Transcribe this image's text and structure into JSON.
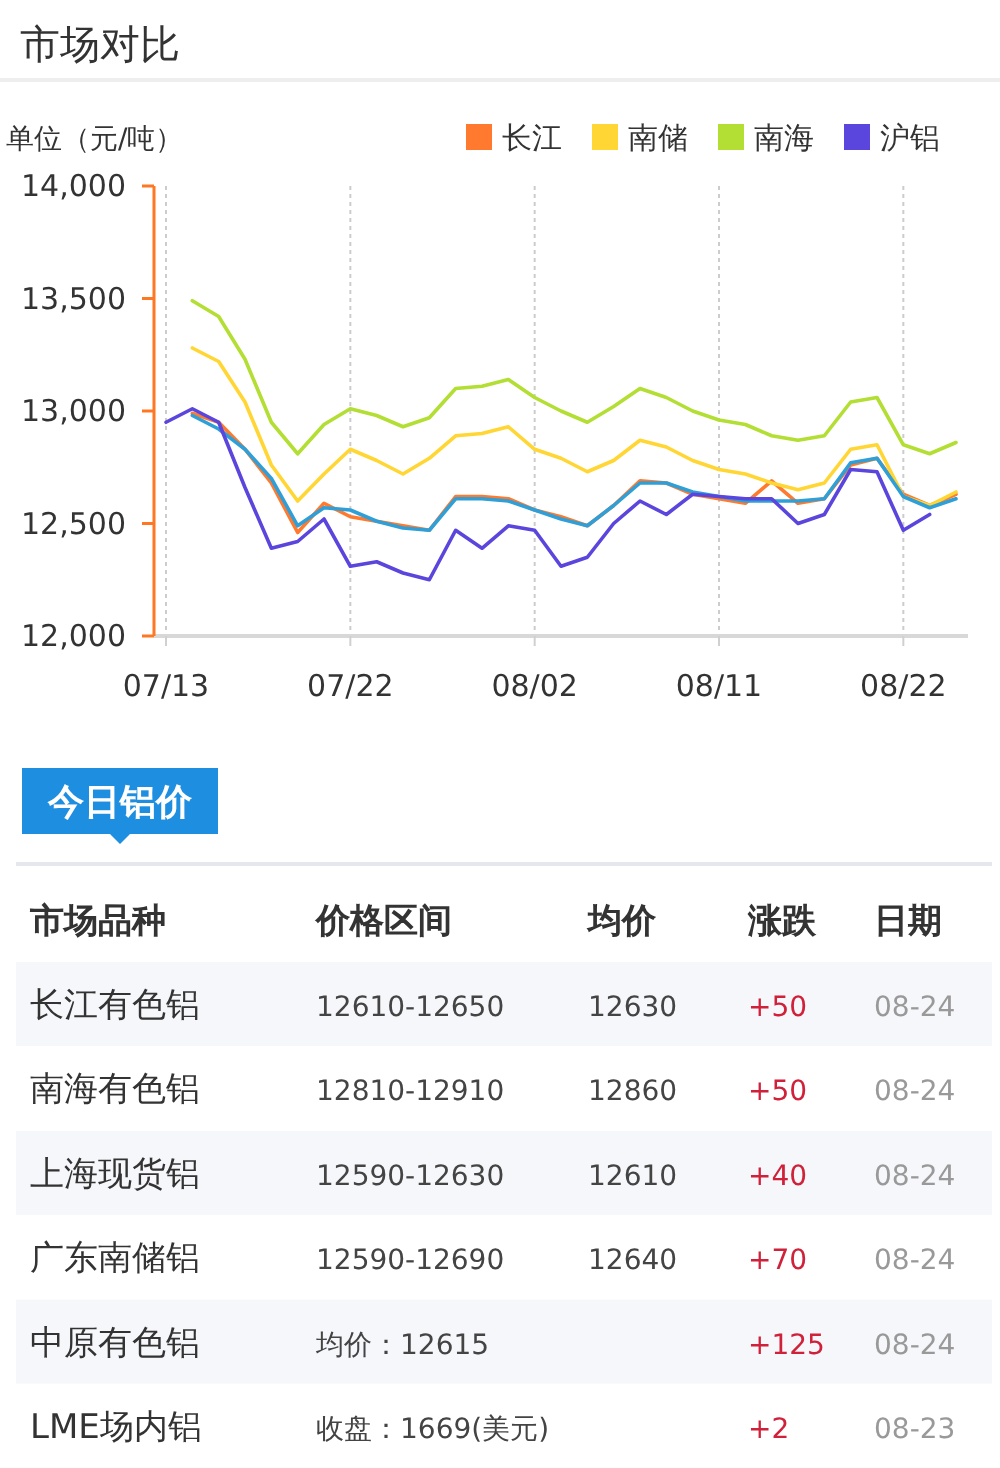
{
  "chart_data": [
    {
      "type": "line",
      "title": "市场对比",
      "ylabel": "单位（元/吨）",
      "categories": [
        "07/13",
        null,
        null,
        null,
        null,
        null,
        null,
        "07/22",
        null,
        null,
        null,
        null,
        null,
        null,
        "08/02",
        null,
        null,
        null,
        null,
        null,
        null,
        "08/11",
        null,
        null,
        null,
        null,
        null,
        null,
        "08/22",
        null,
        null
      ],
      "series": [
        {
          "name": "长江",
          "color": "#ff7a2e",
          "values": [
            null,
            12990,
            12950,
            12830,
            12680,
            12460,
            12590,
            12530,
            12510,
            12490,
            12470,
            12620,
            12620,
            12610,
            12560,
            12530,
            12490,
            12580,
            12690,
            12680,
            12630,
            12610,
            12590,
            12690,
            12590,
            12610,
            12760,
            12790,
            12630,
            12580,
            12630
          ]
        },
        {
          "name": "南储",
          "color": "#ffd633",
          "values": [
            null,
            13280,
            13220,
            13040,
            12760,
            12600,
            12720,
            12830,
            12780,
            12720,
            12790,
            12890,
            12900,
            12930,
            12830,
            12790,
            12730,
            12780,
            12870,
            12840,
            12780,
            12740,
            12720,
            12680,
            12650,
            12680,
            12830,
            12850,
            12620,
            12580,
            12640
          ]
        },
        {
          "name": "南海",
          "color": "#b3de33",
          "values": [
            null,
            13490,
            13420,
            13230,
            12950,
            12810,
            12940,
            13010,
            12980,
            12930,
            12970,
            13100,
            13110,
            13140,
            13060,
            13000,
            12950,
            13020,
            13100,
            13060,
            13000,
            12960,
            12940,
            12890,
            12870,
            12890,
            13040,
            13060,
            12850,
            12810,
            12860
          ]
        },
        {
          "color": "#2f9fd8",
          "values": [
            null,
            12980,
            12920,
            12830,
            12700,
            12490,
            12570,
            12560,
            12510,
            12480,
            12470,
            12610,
            12610,
            12600,
            12560,
            12520,
            12490,
            12580,
            12680,
            12680,
            12640,
            12620,
            12600,
            12600,
            12600,
            12610,
            12770,
            12790,
            12620,
            12570,
            12610
          ]
        },
        {
          "name": "沪铝",
          "color": "#5a45dd",
          "values": [
            12950,
            13010,
            12950,
            12660,
            12390,
            12420,
            12520,
            12310,
            12330,
            12280,
            12250,
            12470,
            12390,
            12490,
            12470,
            12310,
            12350,
            12500,
            12600,
            12540,
            12630,
            12620,
            12610,
            12610,
            12500,
            12540,
            12740,
            12730,
            12470,
            12540,
            null
          ]
        }
      ],
      "ylim": [
        12000,
        14000
      ],
      "yticks": [
        {
          "value": 12000,
          "label": "12,000"
        },
        {
          "value": 12500,
          "label": "12,500"
        },
        {
          "value": 13000,
          "label": "13,000"
        },
        {
          "value": 13500,
          "label": "13,500"
        },
        {
          "value": 14000,
          "label": "14,000"
        }
      ],
      "grid": "x",
      "legend": "top right"
    },
    {
      "type": "other",
      "title": "今日铝价",
      "categories": [
        "市场品种",
        "价格区间",
        "均价",
        "涨跌",
        "日期"
      ],
      "annotations": [
        "长江有色铝",
        "12610-12650",
        "12630",
        "+50",
        "08-24",
        "南海有色铝",
        "12810-12910",
        "12860",
        "+50",
        "08-24",
        "上海现货铝",
        "12590-12630",
        "12610",
        "+40",
        "08-24",
        "广东南储铝",
        "12590-12690",
        "12640",
        "+70",
        "08-24",
        "中原有色铝",
        "均价：12615",
        null,
        "+125",
        "08-24",
        "LME场内铝",
        "收盘：1669(美元)",
        null,
        "+2",
        "08-23"
      ]
    }
  ]
}
